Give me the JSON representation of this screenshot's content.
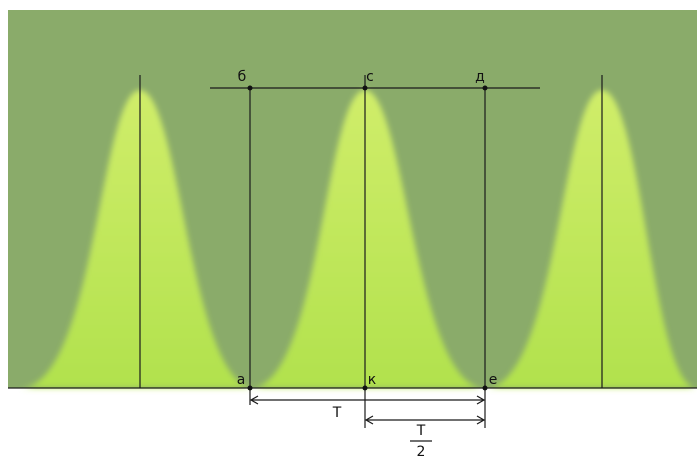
{
  "points": [
    "б",
    "с",
    "д",
    "а",
    "к",
    "е"
  ],
  "period": {
    "label": "T"
  },
  "half_period": {
    "numerator": "T",
    "denominator": "2"
  }
}
